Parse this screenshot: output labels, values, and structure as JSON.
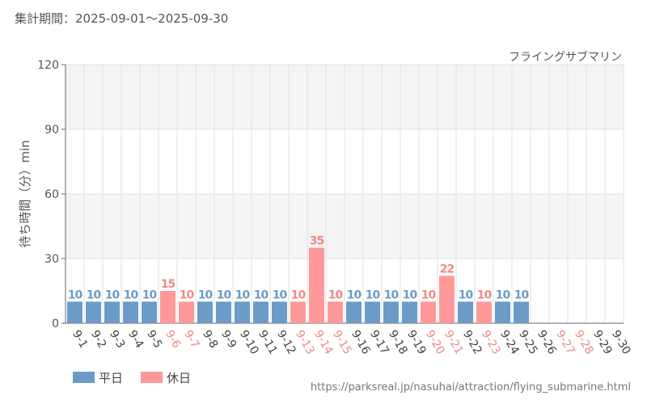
{
  "header": {
    "period_text": "集計期間：2025-09-01～2025-09-30"
  },
  "footer": {
    "source_url": "https://parksreal.jp/nasuhai/attraction/flying_submarine.html"
  },
  "colors": {
    "weekday": "#6b9bc6",
    "holiday": "#ff9898",
    "weekday_tick": "#444444",
    "holiday_tick": "#f08888",
    "band": "#f4f4f4",
    "grid": "#e2e2e2"
  },
  "chart_data": {
    "type": "bar",
    "title": "フライングサブマリン",
    "ylabel": "待ち時間（分）min",
    "ylim": [
      0,
      120
    ],
    "yticks": [
      0,
      30,
      60,
      90,
      120
    ],
    "categories": [
      "9-1",
      "9-2",
      "9-3",
      "9-4",
      "9-5",
      "9-6",
      "9-7",
      "9-8",
      "9-9",
      "9-10",
      "9-11",
      "9-12",
      "9-13",
      "9-14",
      "9-15",
      "9-16",
      "9-17",
      "9-18",
      "9-19",
      "9-20",
      "9-21",
      "9-22",
      "9-23",
      "9-24",
      "9-25",
      "9-26",
      "9-27",
      "9-28",
      "9-29",
      "9-30"
    ],
    "values": [
      10,
      10,
      10,
      10,
      10,
      15,
      10,
      10,
      10,
      10,
      10,
      10,
      10,
      35,
      10,
      10,
      10,
      10,
      10,
      10,
      22,
      10,
      10,
      10,
      10,
      null,
      null,
      null,
      null,
      null
    ],
    "day_type": [
      "平日",
      "平日",
      "平日",
      "平日",
      "平日",
      "休日",
      "休日",
      "平日",
      "平日",
      "平日",
      "平日",
      "平日",
      "休日",
      "休日",
      "休日",
      "平日",
      "平日",
      "平日",
      "平日",
      "休日",
      "休日",
      "平日",
      "休日",
      "平日",
      "平日",
      "平日",
      "休日",
      "休日",
      "平日",
      "平日"
    ],
    "legend": [
      {
        "name": "平日",
        "key": "weekday"
      },
      {
        "name": "休日",
        "key": "holiday"
      }
    ],
    "legend_position": "bottom-left",
    "grid": true
  }
}
